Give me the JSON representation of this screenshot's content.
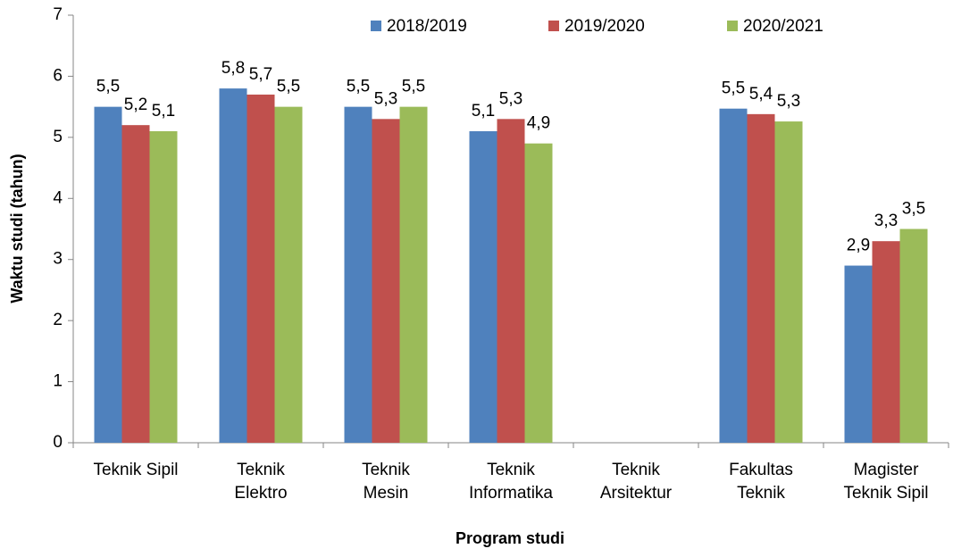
{
  "chart_data": {
    "type": "bar",
    "x_label": "Program studi",
    "y_label": "Waktu studi (tahun)",
    "categories": [
      [
        "Teknik Sipil"
      ],
      [
        "Teknik",
        "Elektro"
      ],
      [
        "Teknik",
        "Mesin"
      ],
      [
        "Teknik",
        "Informatika"
      ],
      [
        "Teknik",
        "Arsitektur"
      ],
      [
        "Fakultas",
        "Teknik"
      ],
      [
        "Magister",
        "Teknik Sipil"
      ]
    ],
    "series": [
      {
        "name": "2018/2019",
        "color": "#4f81bd",
        "values": [
          5.5,
          5.8,
          5.5,
          5.1,
          null,
          5.47,
          2.9
        ],
        "value_labels": [
          "5,5",
          "5,8",
          "5,5",
          "5,1",
          null,
          "5,5",
          "2,9"
        ]
      },
      {
        "name": "2019/2020",
        "color": "#c0504d",
        "values": [
          5.2,
          5.7,
          5.3,
          5.3,
          null,
          5.38,
          3.3
        ],
        "value_labels": [
          "5,2",
          "5,7",
          "5,3",
          "5,3",
          null,
          "5,4",
          "3,3"
        ]
      },
      {
        "name": "2020/2021",
        "color": "#9bbb59",
        "values": [
          5.1,
          5.5,
          5.5,
          4.9,
          null,
          5.26,
          3.5
        ],
        "value_labels": [
          "5,1",
          "5,5",
          "5,5",
          "4,9",
          null,
          "5,3",
          "3,5"
        ]
      }
    ],
    "ylim": [
      0,
      7
    ],
    "yticks": [
      0,
      1,
      2,
      3,
      4,
      5,
      6,
      7
    ],
    "grid": false,
    "legend": "top"
  }
}
